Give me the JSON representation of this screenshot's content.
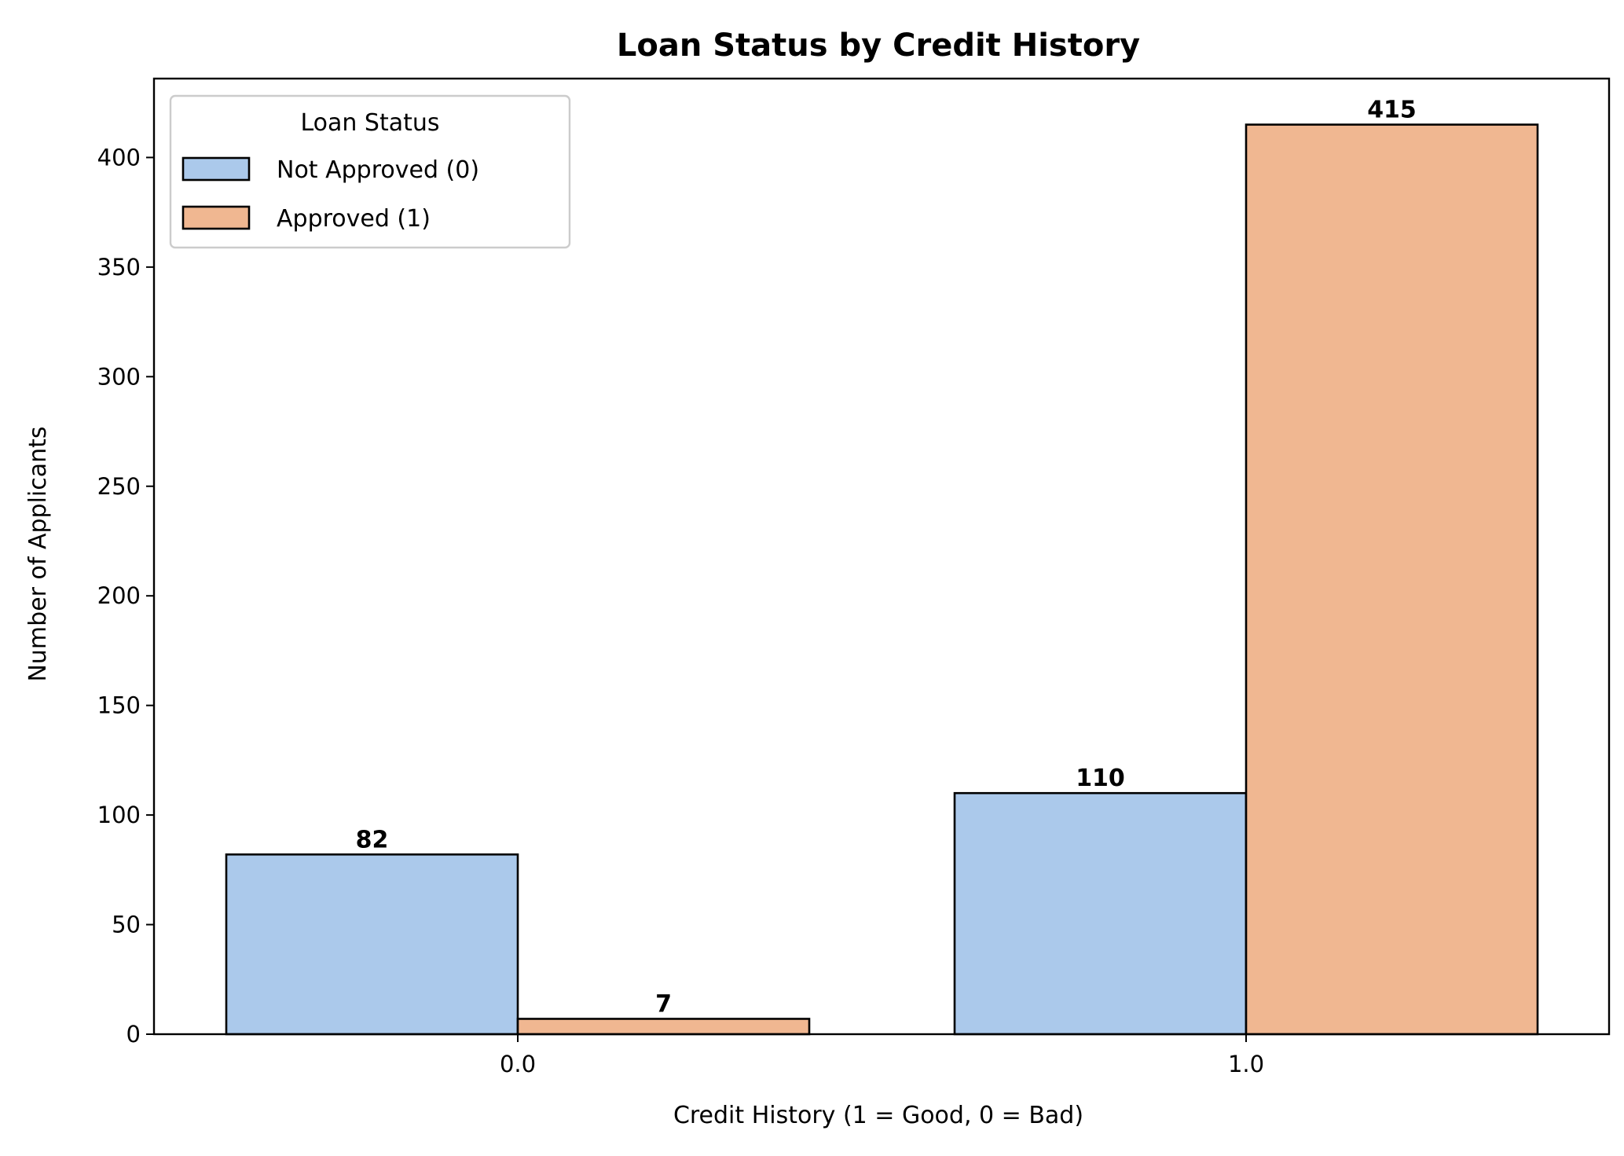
{
  "chart_data": {
    "type": "bar",
    "title": "Loan Status by Credit History",
    "xlabel": "Credit History (1 = Good, 0 = Bad)",
    "ylabel": "Number of Applicants",
    "categories": [
      "0.0",
      "1.0"
    ],
    "series": [
      {
        "name": "Not Approved (0)",
        "values": [
          82,
          110
        ],
        "color": "#abc9eb"
      },
      {
        "name": "Approved (1)",
        "values": [
          7,
          415
        ],
        "color": "#f0b791"
      }
    ],
    "ylim": [
      0,
      436
    ],
    "yticks": [
      0,
      50,
      100,
      150,
      200,
      250,
      300,
      350,
      400
    ],
    "legend": {
      "title": "Loan Status",
      "placement": "upper-left"
    },
    "data_labels": true,
    "grid": false
  }
}
